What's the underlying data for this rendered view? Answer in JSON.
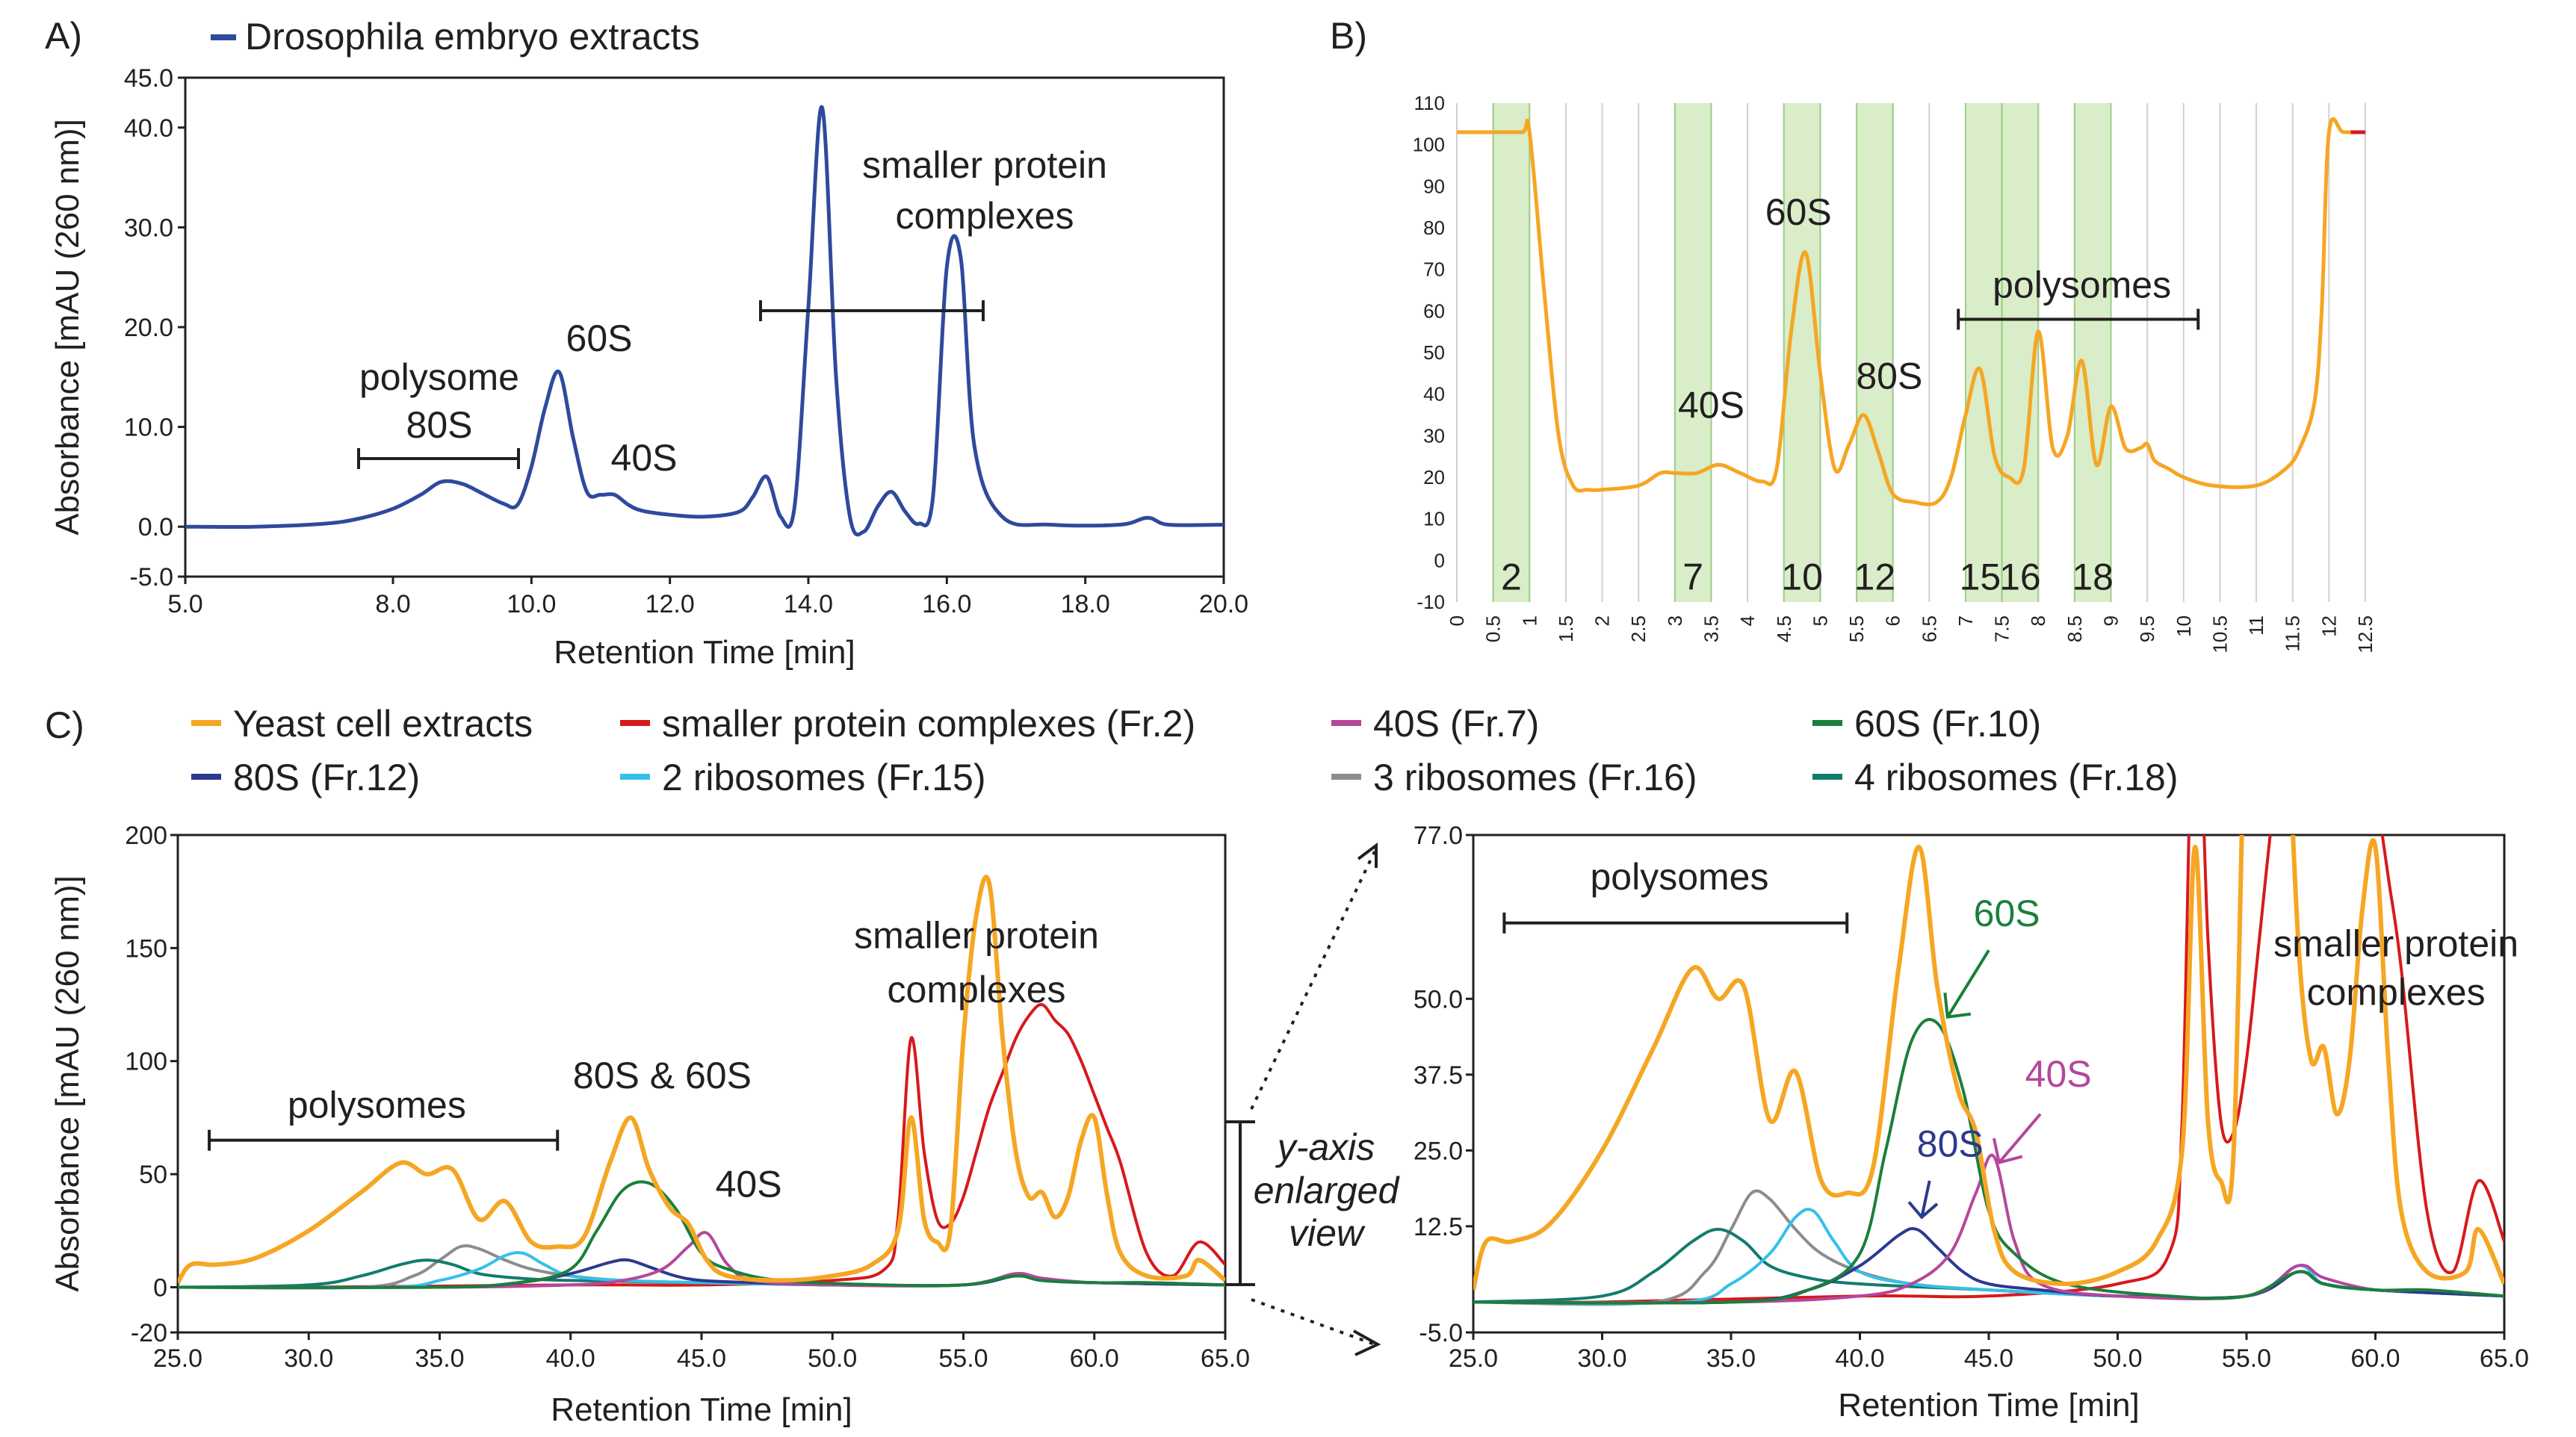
{
  "panels": {
    "A": {
      "label": "A)"
    },
    "B": {
      "label": "B)"
    },
    "C": {
      "label": "C)"
    }
  },
  "colors": {
    "drosophila": "#2e4a9e",
    "yeast": "#f5a623",
    "smaller": "#d7191c",
    "s40": "#b5479b",
    "s60": "#1a7f3c",
    "s80": "#2b3990",
    "r2": "#35c0e8",
    "r3": "#8c8c8c",
    "r4": "#137b6e",
    "fraction_shade": "#d9edc9"
  },
  "chart_data": [
    {
      "panel": "A",
      "type": "line",
      "xlabel": "Retention Time [min]",
      "ylabel": "Absorbance [mAU (260 nm)]",
      "xlim": [
        5.0,
        20.0
      ],
      "ylim": [
        -5.0,
        45.0
      ],
      "xticks": [
        "5.0",
        "8.0",
        "10.0",
        "12.0",
        "14.0",
        "16.0",
        "18.0",
        "20.0"
      ],
      "yticks": [
        "-5.0",
        "0.0",
        "10.0",
        "20.0",
        "30.0",
        "40.0",
        "45.0"
      ],
      "legend": [
        "Drosophila embryo extracts"
      ],
      "annotations": [
        "polysome",
        "80S",
        "60S",
        "40S",
        "smaller protein",
        "complexes"
      ],
      "series": [
        {
          "name": "Drosophila embryo extracts",
          "x": [
            5.0,
            6.0,
            7.0,
            7.5,
            8.0,
            8.4,
            8.7,
            9.0,
            9.3,
            9.6,
            9.8,
            10.0,
            10.2,
            10.4,
            10.6,
            10.8,
            11.0,
            11.2,
            11.4,
            11.6,
            12.0,
            12.5,
            13.0,
            13.2,
            13.4,
            13.6,
            13.8,
            14.0,
            14.2,
            14.4,
            14.6,
            14.8,
            15.0,
            15.2,
            15.4,
            15.6,
            15.8,
            16.0,
            16.2,
            16.4,
            16.8,
            17.5,
            18.5,
            18.9,
            19.2,
            20.0
          ],
          "y": [
            0.0,
            0.0,
            0.3,
            0.8,
            1.8,
            3.2,
            4.5,
            4.3,
            3.3,
            2.3,
            2.2,
            6.0,
            12.0,
            15.5,
            9.0,
            3.5,
            3.2,
            3.2,
            2.2,
            1.6,
            1.2,
            1.0,
            1.5,
            3.0,
            5.0,
            1.0,
            2.0,
            22.0,
            42.0,
            15.0,
            1.0,
            -0.5,
            2.0,
            3.5,
            1.5,
            0.3,
            3.0,
            26.0,
            27.0,
            8.0,
            1.0,
            0.2,
            0.2,
            0.9,
            0.2,
            0.2
          ]
        }
      ]
    },
    {
      "panel": "B",
      "type": "line",
      "xlim": [
        0,
        12.5
      ],
      "ylim": [
        -10,
        110
      ],
      "xticks": [
        "0",
        "0.5",
        "1",
        "1.5",
        "2",
        "2.5",
        "3",
        "3.5",
        "4",
        "4.5",
        "5",
        "5.5",
        "6",
        "6.5",
        "7",
        "7.5",
        "8",
        "8.5",
        "9",
        "9.5",
        "10",
        "10.5",
        "11",
        "11.5",
        "12",
        "12.5"
      ],
      "yticks": [
        "-10",
        "0",
        "10",
        "20",
        "30",
        "40",
        "50",
        "60",
        "70",
        "80",
        "90",
        "100",
        "110"
      ],
      "annotations": [
        "40S",
        "60S",
        "80S",
        "polysomes"
      ],
      "fractions": [
        {
          "label": "2",
          "x_start": 0.5,
          "x_end": 1.0
        },
        {
          "label": "7",
          "x_start": 3.0,
          "x_end": 3.5
        },
        {
          "label": "10",
          "x_start": 4.5,
          "x_end": 5.0
        },
        {
          "label": "12",
          "x_start": 5.5,
          "x_end": 6.0
        },
        {
          "label": "15",
          "x_start": 7.0,
          "x_end": 7.5
        },
        {
          "label": "16",
          "x_start": 7.5,
          "x_end": 8.0
        },
        {
          "label": "18",
          "x_start": 8.5,
          "x_end": 9.0
        }
      ],
      "series": [
        {
          "name": "",
          "x": [
            0,
            0.5,
            0.9,
            1.0,
            1.2,
            1.4,
            1.6,
            1.8,
            2.0,
            2.5,
            2.8,
            3.0,
            3.3,
            3.6,
            3.9,
            4.2,
            4.4,
            4.6,
            4.8,
            5.0,
            5.2,
            5.4,
            5.6,
            5.8,
            6.0,
            6.3,
            6.6,
            6.8,
            7.0,
            7.2,
            7.4,
            7.6,
            7.8,
            8.0,
            8.2,
            8.4,
            8.6,
            8.8,
            9.0,
            9.2,
            9.4,
            9.5,
            9.6,
            9.8,
            10.0,
            10.4,
            11.0,
            11.4,
            11.6,
            11.8,
            11.9,
            12.0,
            12.2,
            12.5
          ],
          "y": [
            103,
            103,
            103,
            103,
            65,
            30,
            18,
            17,
            17,
            18,
            21,
            21,
            21,
            23,
            21,
            19,
            22,
            55,
            74,
            45,
            22,
            28,
            35,
            26,
            16,
            14,
            14,
            20,
            35,
            46,
            25,
            20,
            22,
            55,
            27,
            30,
            48,
            23,
            37,
            27,
            27,
            28,
            24,
            22,
            20,
            18,
            18,
            22,
            27,
            38,
            60,
            103,
            103,
            103
          ]
        }
      ]
    },
    {
      "panel": "C",
      "type": "line",
      "xlabel": "Retention Time [min]",
      "ylabel": "Absorbance [mAU (260 nm)]",
      "xlim": [
        25.0,
        65.0
      ],
      "ylim": [
        -20,
        200
      ],
      "xticks": [
        "25.0",
        "30.0",
        "35.0",
        "40.0",
        "45.0",
        "50.0",
        "55.0",
        "60.0",
        "65.0"
      ],
      "yticks": [
        "-20",
        "0",
        "50",
        "100",
        "150",
        "200"
      ],
      "annotations": [
        "polysomes",
        "80S & 60S",
        "40S",
        "smaller protein",
        "complexes"
      ],
      "series": [
        {
          "name": "Yeast cell extracts",
          "x": [
            25,
            25.5,
            26.5,
            28,
            30,
            32,
            33.5,
            34.5,
            35.5,
            36.5,
            37.5,
            38.5,
            39.5,
            40.5,
            41.5,
            42.3,
            43,
            43.8,
            44.5,
            45.2,
            46,
            48,
            50,
            51.5,
            52.5,
            53,
            53.5,
            54,
            54.5,
            55,
            55.5,
            56,
            56.5,
            57,
            57.5,
            58,
            58.5,
            59,
            59.5,
            60,
            60.5,
            61,
            62,
            63.5,
            64,
            65
          ],
          "y": [
            2,
            10,
            10,
            13,
            25,
            42,
            55,
            50,
            52,
            30,
            38,
            20,
            18,
            22,
            55,
            75,
            52,
            35,
            28,
            12,
            5,
            3,
            5,
            10,
            25,
            75,
            30,
            20,
            25,
            110,
            165,
            178,
            110,
            60,
            40,
            42,
            31,
            40,
            65,
            75,
            40,
            15,
            5,
            5,
            12,
            3
          ]
        },
        {
          "name": "smaller protein complexes (Fr.2)",
          "x": [
            25,
            30,
            40,
            45,
            50,
            52,
            52.5,
            53,
            53.5,
            54,
            54.5,
            55,
            55.5,
            56,
            56.5,
            57,
            57.5,
            58,
            58.5,
            59,
            59.5,
            60,
            60.5,
            61,
            62,
            63,
            64,
            65
          ],
          "y": [
            0,
            0,
            1,
            1,
            3,
            8,
            30,
            110,
            60,
            30,
            28,
            40,
            60,
            80,
            95,
            110,
            120,
            125,
            118,
            112,
            100,
            85,
            70,
            55,
            15,
            5,
            20,
            10
          ]
        },
        {
          "name": "40S (Fr.7)",
          "x": [
            25,
            35,
            40,
            42,
            43.5,
            44.5,
            45.2,
            46,
            47,
            50,
            55,
            57,
            58,
            60,
            62,
            65
          ],
          "y": [
            0,
            0,
            1,
            3,
            8,
            18,
            24,
            10,
            3,
            1,
            1,
            6,
            4,
            2,
            2,
            1
          ]
        },
        {
          "name": "60S (Fr.10)",
          "x": [
            25,
            35,
            38,
            40,
            41,
            42,
            43,
            44,
            45,
            46,
            48,
            52,
            55,
            57,
            58,
            60,
            62,
            65
          ],
          "y": [
            0,
            0,
            2,
            8,
            25,
            43,
            46,
            35,
            15,
            8,
            3,
            1,
            1,
            5,
            3,
            2,
            2,
            1
          ]
        },
        {
          "name": "80S (Fr.12)",
          "x": [
            25,
            35,
            38,
            40,
            41.5,
            42.2,
            43,
            44,
            45,
            47,
            50,
            55,
            57,
            58,
            60,
            65
          ],
          "y": [
            0,
            0,
            2,
            6,
            11,
            12,
            9,
            5,
            3,
            2,
            1,
            1,
            5,
            3,
            2,
            1
          ]
        },
        {
          "name": "2 ribosomes (Fr.15)",
          "x": [
            25,
            33,
            35,
            36.5,
            37.5,
            38.2,
            39,
            40,
            42,
            45,
            50,
            55,
            57,
            58,
            60,
            65
          ],
          "y": [
            0,
            0,
            3,
            8,
            14,
            15,
            10,
            5,
            3,
            2,
            1,
            1,
            6,
            3,
            2,
            1
          ]
        },
        {
          "name": "3 ribosomes (Fr.16)",
          "x": [
            25,
            32,
            34,
            35,
            35.8,
            36.5,
            37.5,
            38.5,
            40,
            42,
            45,
            50,
            55,
            57,
            58,
            60,
            65
          ],
          "y": [
            0,
            0,
            5,
            12,
            18,
            17,
            12,
            8,
            5,
            3,
            2,
            1,
            1,
            5,
            3,
            2,
            1
          ]
        },
        {
          "name": "4 ribosomes (Fr.18)",
          "x": [
            25,
            30,
            32,
            33.5,
            34.5,
            35.5,
            36.5,
            38,
            40,
            45,
            50,
            55,
            57,
            58,
            60,
            65
          ],
          "y": [
            0,
            1,
            5,
            10,
            12,
            10,
            6,
            4,
            3,
            2,
            1,
            1,
            5,
            3,
            2,
            1
          ]
        }
      ]
    },
    {
      "panel": "C-enlarged",
      "type": "line",
      "xlabel": "Retention Time [min]",
      "xlim": [
        25.0,
        65.0
      ],
      "ylim": [
        -5.0,
        77.0
      ],
      "xticks": [
        "25.0",
        "30.0",
        "35.0",
        "40.0",
        "45.0",
        "50.0",
        "55.0",
        "60.0",
        "65.0"
      ],
      "yticks": [
        "-5.0",
        "12.5",
        "25.0",
        "37.5",
        "50.0",
        "77.0"
      ],
      "annotations": [
        "polysomes",
        "60S",
        "40S",
        "80S",
        "smaller protein",
        "complexes"
      ],
      "inset_note": [
        "y-axis",
        "enlarged",
        "view"
      ],
      "series_ref": "same as panel C"
    }
  ],
  "legend_A": {
    "label": "Drosophila embryo extracts"
  },
  "legend_C": [
    {
      "key": "yeast",
      "label": "Yeast cell extracts"
    },
    {
      "key": "smaller",
      "label": "smaller protein complexes (Fr.2)"
    },
    {
      "key": "s40",
      "label": "40S (Fr.7)"
    },
    {
      "key": "s60",
      "label": "60S (Fr.10)"
    },
    {
      "key": "s80",
      "label": "80S (Fr.12)"
    },
    {
      "key": "r2",
      "label": "2 ribosomes (Fr.15)"
    },
    {
      "key": "r3",
      "label": "3 ribosomes (Fr.16)"
    },
    {
      "key": "r4",
      "label": "4 ribosomes (Fr.18)"
    }
  ]
}
